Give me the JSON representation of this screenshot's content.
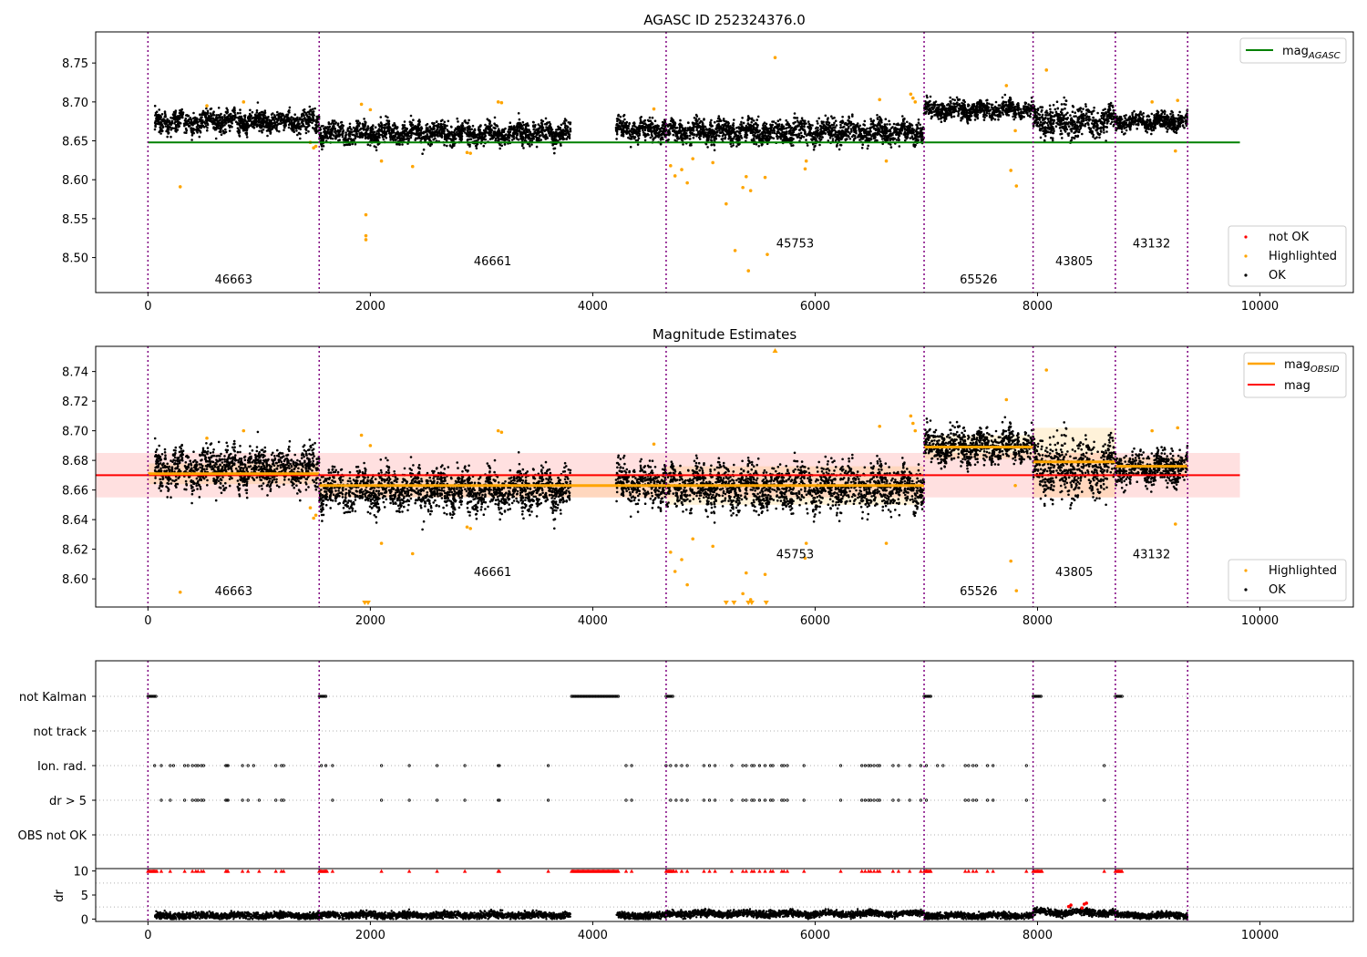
{
  "chart_data": [
    {
      "type": "scatter",
      "title": "AGASC ID 252324376.0",
      "xlim": [
        -470,
        10840
      ],
      "ylim": [
        8.455,
        8.79
      ],
      "xticks": [
        0,
        2000,
        4000,
        6000,
        8000,
        10000
      ],
      "yticks": [
        8.5,
        8.55,
        8.6,
        8.65,
        8.7,
        8.75
      ],
      "grid": false,
      "legend_top": {
        "placement": "top-right",
        "entries": [
          {
            "label": "mag",
            "sub": "AGASC",
            "color": "#008000",
            "kind": "line"
          }
        ]
      },
      "legend_bottom": {
        "placement": "bottom-right",
        "entries": [
          {
            "label": "not OK",
            "color": "#ff0000",
            "kind": "marker"
          },
          {
            "label": "Highlighted",
            "color": "#ffa500",
            "kind": "marker"
          },
          {
            "label": "OK",
            "color": "#000000",
            "kind": "marker"
          }
        ]
      },
      "obs_boundaries": [
        0,
        1540,
        4660,
        6980,
        7960,
        8700,
        9350
      ],
      "obs_labels": [
        {
          "text": "46663",
          "x": 770,
          "y": 8.467
        },
        {
          "text": "46661",
          "x": 3100,
          "y": 8.49
        },
        {
          "text": "45753",
          "x": 5820,
          "y": 8.513
        },
        {
          "text": "65526",
          "x": 7470,
          "y": 8.467
        },
        {
          "text": "43805",
          "x": 8330,
          "y": 8.49
        },
        {
          "text": "43132",
          "x": 9025,
          "y": 8.513
        }
      ],
      "mag_agasc_line": {
        "value": 8.648,
        "x": [
          0,
          9820
        ],
        "color": "#008000"
      },
      "ok_segments": [
        {
          "x": [
            60,
            1540
          ],
          "mean": 8.675,
          "spread": 0.012
        },
        {
          "x": [
            1540,
            3800
          ],
          "mean": 8.66,
          "spread": 0.012
        },
        {
          "x": [
            4210,
            4660
          ],
          "mean": 8.665,
          "spread": 0.012
        },
        {
          "x": [
            4660,
            6980
          ],
          "mean": 8.662,
          "spread": 0.013
        },
        {
          "x": [
            6980,
            7960
          ],
          "mean": 8.69,
          "spread": 0.01
        },
        {
          "x": [
            7960,
            8700
          ],
          "mean": 8.675,
          "spread": 0.018
        },
        {
          "x": [
            8700,
            9350
          ],
          "mean": 8.675,
          "spread": 0.01
        }
      ],
      "highlighted_points": [
        [
          290,
          8.591
        ],
        [
          530,
          8.695
        ],
        [
          860,
          8.7
        ],
        [
          1460,
          8.648
        ],
        [
          1490,
          8.641
        ],
        [
          1510,
          8.643
        ],
        [
          1920,
          8.697
        ],
        [
          1960,
          8.555
        ],
        [
          1960,
          8.528
        ],
        [
          1960,
          8.523
        ],
        [
          2000,
          8.69
        ],
        [
          2100,
          8.624
        ],
        [
          2380,
          8.617
        ],
        [
          2870,
          8.635
        ],
        [
          2900,
          8.634
        ],
        [
          3150,
          8.7
        ],
        [
          3180,
          8.699
        ],
        [
          4550,
          8.691
        ],
        [
          4700,
          8.618
        ],
        [
          4740,
          8.605
        ],
        [
          4800,
          8.613
        ],
        [
          4850,
          8.596
        ],
        [
          4900,
          8.627
        ],
        [
          5080,
          8.622
        ],
        [
          5200,
          8.569
        ],
        [
          5280,
          8.509
        ],
        [
          5350,
          8.59
        ],
        [
          5380,
          8.604
        ],
        [
          5420,
          8.586
        ],
        [
          5400,
          8.483
        ],
        [
          5550,
          8.603
        ],
        [
          5570,
          8.504
        ],
        [
          5640,
          8.757
        ],
        [
          5910,
          8.614
        ],
        [
          5920,
          8.624
        ],
        [
          6580,
          8.703
        ],
        [
          6640,
          8.624
        ],
        [
          6860,
          8.71
        ],
        [
          6880,
          8.705
        ],
        [
          6900,
          8.7
        ],
        [
          7720,
          8.721
        ],
        [
          7760,
          8.612
        ],
        [
          7800,
          8.663
        ],
        [
          7810,
          8.592
        ],
        [
          8080,
          8.741
        ],
        [
          9030,
          8.7
        ],
        [
          9240,
          8.637
        ],
        [
          9260,
          8.702
        ]
      ]
    },
    {
      "type": "scatter",
      "title": "Magnitude Estimates",
      "xlim": [
        -470,
        10840
      ],
      "ylim": [
        8.581,
        8.757
      ],
      "xticks": [
        0,
        2000,
        4000,
        6000,
        8000,
        10000
      ],
      "yticks": [
        8.6,
        8.62,
        8.64,
        8.66,
        8.68,
        8.7,
        8.72,
        8.74
      ],
      "grid": false,
      "legend_top": {
        "placement": "top-right",
        "entries": [
          {
            "label": "mag",
            "sub": "OBSID",
            "color": "#ffa500",
            "kind": "line"
          },
          {
            "label": "mag",
            "sub": "",
            "color": "#ff0000",
            "kind": "line"
          }
        ]
      },
      "legend_bottom": {
        "placement": "bottom-right",
        "entries": [
          {
            "label": "Highlighted",
            "color": "#ffa500",
            "kind": "marker"
          },
          {
            "label": "OK",
            "color": "#000000",
            "kind": "marker"
          }
        ]
      },
      "mag_line": {
        "value": 8.67,
        "band": [
          8.655,
          8.685
        ],
        "x": [
          -470,
          9820
        ],
        "color": "#ff0000"
      },
      "obsid_mags": [
        {
          "x": [
            0,
            1540
          ],
          "value": 8.671,
          "band": [
            8.664,
            8.678
          ]
        },
        {
          "x": [
            1540,
            4660
          ],
          "value": 8.663,
          "band": [
            8.655,
            8.671
          ]
        },
        {
          "x": [
            4660,
            6980
          ],
          "value": 8.663,
          "band": [
            8.65,
            8.676
          ]
        },
        {
          "x": [
            6980,
            7960
          ],
          "value": 8.689,
          "band": [
            8.681,
            8.697
          ]
        },
        {
          "x": [
            7960,
            8700
          ],
          "value": 8.679,
          "band": [
            8.655,
            8.702
          ]
        },
        {
          "x": [
            8700,
            9350
          ],
          "value": 8.676,
          "band": [
            8.67,
            8.682
          ]
        }
      ],
      "obs_labels": [
        {
          "text": "46663",
          "x": 770,
          "y": 8.589
        },
        {
          "text": "46661",
          "x": 3100,
          "y": 8.602
        },
        {
          "text": "45753",
          "x": 5820,
          "y": 8.614
        },
        {
          "text": "65526",
          "x": 7470,
          "y": 8.589
        },
        {
          "text": "43805",
          "x": 8330,
          "y": 8.602
        },
        {
          "text": "43132",
          "x": 9025,
          "y": 8.614
        }
      ],
      "clipped_low_markers": [
        1950,
        1980,
        5200,
        5270,
        5400,
        5430,
        5560
      ],
      "clipped_high_markers": [
        5640
      ]
    },
    {
      "type": "scatter",
      "title": "",
      "xlim": [
        -470,
        10840
      ],
      "xticks": [
        0,
        2000,
        4000,
        6000,
        8000,
        10000
      ],
      "flag_rows": [
        "not Kalman",
        "not track",
        "Ion. rad.",
        "dr > 5",
        "OBS not OK"
      ],
      "flag_ranges": [
        {
          "row": "not Kalman",
          "x": [
            [
              0,
              80
            ],
            [
              1540,
              1610
            ],
            [
              3810,
              4230
            ],
            [
              4660,
              4730
            ],
            [
              6980,
              7040
            ],
            [
              7960,
              8040
            ],
            [
              8700,
              8760
            ]
          ]
        },
        {
          "row": "Ion. rad.",
          "x": [
            60,
            120,
            200,
            230,
            330,
            360,
            400,
            430,
            450,
            480,
            500,
            700,
            710,
            720,
            850,
            900,
            950,
            1150,
            1200,
            1220,
            1560,
            1600,
            1660,
            2100,
            2350,
            2600,
            2850,
            3150,
            3160,
            3600,
            4300,
            4350,
            4660,
            4700,
            4750,
            4800,
            4850,
            5000,
            5050,
            5100,
            5250,
            5350,
            5380,
            5430,
            5450,
            5500,
            5550,
            5600,
            5620,
            5700,
            5720,
            5750,
            5900,
            6230,
            6420,
            6450,
            6480,
            6500,
            6530,
            6560,
            6580,
            6700,
            6750,
            6850,
            6950,
            7000,
            7100,
            7150,
            7350,
            7380,
            7420,
            7450,
            7550,
            7600,
            7900,
            8600
          ]
        },
        {
          "row": "dr > 5",
          "x": [
            120,
            200,
            330,
            400,
            430,
            450,
            480,
            500,
            700,
            710,
            720,
            850,
            900,
            1000,
            1150,
            1200,
            1220,
            1660,
            2100,
            2350,
            2600,
            2850,
            3150,
            3160,
            3600,
            4300,
            4350,
            4700,
            4750,
            4800,
            4850,
            5000,
            5050,
            5100,
            5250,
            5350,
            5380,
            5430,
            5450,
            5500,
            5550,
            5600,
            5620,
            5700,
            5720,
            5750,
            5900,
            6230,
            6420,
            6450,
            6480,
            6500,
            6530,
            6560,
            6580,
            6700,
            6750,
            6850,
            6950,
            7000,
            7350,
            7380,
            7420,
            7450,
            7550,
            7600,
            7900,
            8600
          ]
        }
      ]
    },
    {
      "type": "scatter",
      "title": "",
      "xlim": [
        -470,
        10840
      ],
      "ylim": [
        -0.5,
        10.5
      ],
      "xticks": [
        0,
        2000,
        4000,
        6000,
        8000,
        10000
      ],
      "yticks": [
        0,
        5,
        10
      ],
      "ylabel": "dr",
      "dr_segments": [
        {
          "x": [
            60,
            1540
          ],
          "mean": 0.7
        },
        {
          "x": [
            1540,
            3800
          ],
          "mean": 0.8
        },
        {
          "x": [
            4210,
            4660
          ],
          "mean": 0.7
        },
        {
          "x": [
            4660,
            6980
          ],
          "mean": 1.1
        },
        {
          "x": [
            6980,
            7960
          ],
          "mean": 0.7
        },
        {
          "x": [
            7960,
            8700
          ],
          "mean": 1.4
        },
        {
          "x": [
            8700,
            9350
          ],
          "mean": 0.8
        }
      ],
      "dr_clipped_at": 10,
      "not_ok_dr_points": [
        [
          8280,
          2.6
        ],
        [
          8300,
          2.9
        ],
        [
          8400,
          2.3
        ],
        [
          8420,
          3.1
        ],
        [
          8440,
          3.3
        ]
      ]
    }
  ]
}
